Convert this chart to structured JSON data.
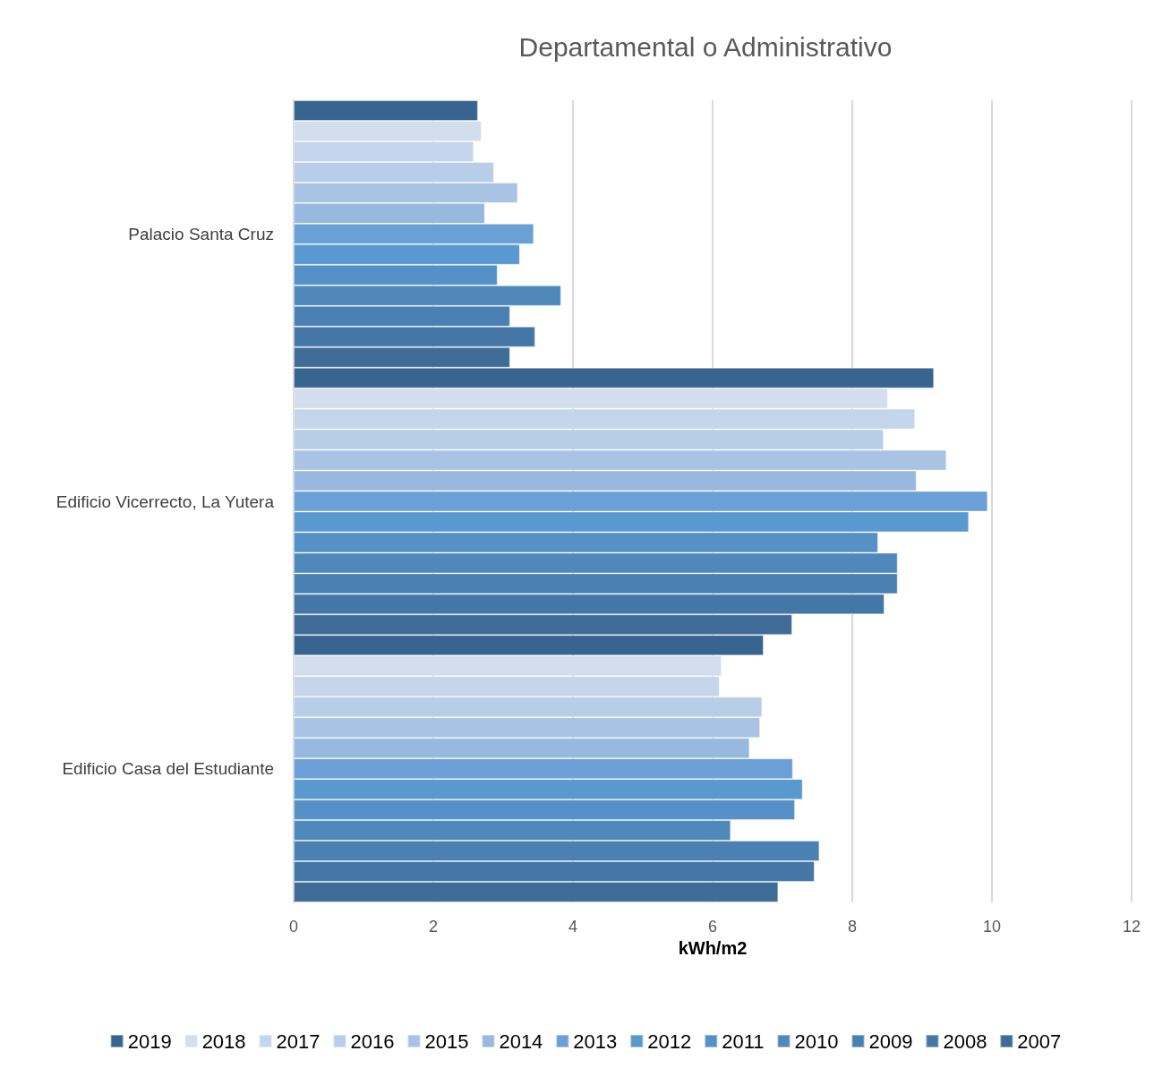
{
  "chart_data": {
    "type": "bar",
    "orientation": "horizontal",
    "title": "Departamental o Administrativo",
    "xlabel": "kWh/m2",
    "categories": [
      "Palacio Santa Cruz",
      "Edificio Vicerrecto, La Yutera",
      "Edificio Casa del Estudiante"
    ],
    "series": [
      {
        "name": "2019",
        "color": "#386590",
        "values": [
          2.64,
          9.17,
          6.73
        ]
      },
      {
        "name": "2018",
        "color": "#d2ddee",
        "values": [
          2.69,
          8.51,
          6.13
        ]
      },
      {
        "name": "2017",
        "color": "#c5d5ec",
        "values": [
          2.58,
          8.9,
          6.1
        ]
      },
      {
        "name": "2016",
        "color": "#b8cde8",
        "values": [
          2.87,
          8.45,
          6.71
        ]
      },
      {
        "name": "2015",
        "color": "#a9c3e4",
        "values": [
          3.21,
          9.35,
          6.68
        ]
      },
      {
        "name": "2014",
        "color": "#97b9e0",
        "values": [
          2.74,
          8.92,
          6.53
        ]
      },
      {
        "name": "2013",
        "color": "#6aa0d6",
        "values": [
          3.44,
          9.94,
          7.15
        ]
      },
      {
        "name": "2012",
        "color": "#5a98d0",
        "values": [
          3.24,
          9.67,
          7.29
        ]
      },
      {
        "name": "2011",
        "color": "#5590c7",
        "values": [
          2.92,
          8.37,
          7.18
        ]
      },
      {
        "name": "2010",
        "color": "#4f89bc",
        "values": [
          3.83,
          8.65,
          6.26
        ]
      },
      {
        "name": "2009",
        "color": "#4a80b2",
        "values": [
          3.1,
          8.65,
          7.53
        ]
      },
      {
        "name": "2008",
        "color": "#4577a6",
        "values": [
          3.46,
          8.46,
          7.46
        ]
      },
      {
        "name": "2007",
        "color": "#3f6c96",
        "values": [
          3.1,
          7.14,
          6.94
        ]
      }
    ],
    "xlim": [
      0,
      12
    ],
    "xticks": [
      0,
      2,
      4,
      6,
      8,
      10,
      12
    ],
    "grid": "x",
    "legend": "bottom"
  }
}
